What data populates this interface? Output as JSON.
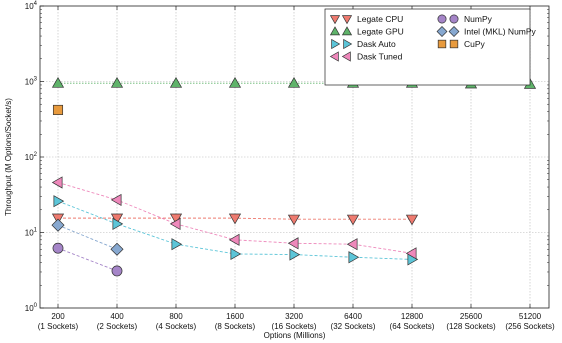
{
  "chart_data": {
    "type": "line",
    "xlabel": "Options (Millions)",
    "ylabel": "Throughput (M Options/Socket/s)",
    "yscale": "log",
    "ylim": [
      1,
      10000
    ],
    "y_ticks": [
      {
        "value": 1,
        "base": "10",
        "exp": "0"
      },
      {
        "value": 10,
        "base": "10",
        "exp": "1"
      },
      {
        "value": 100,
        "base": "10",
        "exp": "2"
      },
      {
        "value": 1000,
        "base": "10",
        "exp": "3"
      },
      {
        "value": 10000,
        "base": "10",
        "exp": "4"
      }
    ],
    "x_ticks": [
      {
        "value": "200",
        "sub": "(1 Sockets)"
      },
      {
        "value": "400",
        "sub": "(2 Sockets)"
      },
      {
        "value": "800",
        "sub": "(4 Sockets)"
      },
      {
        "value": "1600",
        "sub": "(8 Sockets)"
      },
      {
        "value": "3200",
        "sub": "(16 Sockets)"
      },
      {
        "value": "6400",
        "sub": "(32 Sockets)"
      },
      {
        "value": "12800",
        "sub": "(64 Sockets)"
      },
      {
        "value": "25600",
        "sub": "(128 Sockets)"
      },
      {
        "value": "51200",
        "sub": "(256 Sockets)"
      }
    ],
    "grid": true,
    "legend_position": "top-right",
    "series": [
      {
        "name": "Legate CPU",
        "marker": "triangle-down",
        "color": "#ee7a6f",
        "line_style": "dashed",
        "x": [
          200,
          400,
          800,
          1600,
          3200,
          6400,
          12800
        ],
        "values": [
          15.5,
          15.5,
          15.5,
          15.5,
          15,
          15,
          15
        ]
      },
      {
        "name": "Legate GPU",
        "marker": "triangle-up",
        "color": "#5fb36a",
        "line_style": "dotted",
        "x": [
          200,
          400,
          800,
          1600,
          3200,
          6400,
          12800,
          25600,
          51200
        ],
        "values": [
          950,
          950,
          950,
          950,
          950,
          950,
          950,
          930,
          920
        ]
      },
      {
        "name": "Dask Auto",
        "marker": "triangle-right",
        "color": "#5cc5d8",
        "line_style": "dashed",
        "x": [
          200,
          400,
          800,
          1600,
          3200,
          6400,
          12800
        ],
        "values": [
          26,
          13,
          7,
          5.2,
          5.1,
          4.7,
          4.4
        ]
      },
      {
        "name": "Dask Tuned",
        "marker": "triangle-left",
        "color": "#ee88bb",
        "line_style": "dashed",
        "x": [
          200,
          400,
          800,
          1600,
          3200,
          6400,
          12800
        ],
        "values": [
          46,
          27,
          13,
          8,
          7.2,
          7,
          5.3
        ]
      },
      {
        "name": "NumPy",
        "marker": "circle",
        "color": "#a585c8",
        "line_style": "dashed",
        "x": [
          200,
          400
        ],
        "values": [
          6.2,
          3.1
        ]
      },
      {
        "name": "Intel (MKL) NumPy",
        "marker": "diamond",
        "color": "#87a8d0",
        "line_style": "dashed",
        "x": [
          200,
          400
        ],
        "values": [
          12.5,
          6
        ]
      },
      {
        "name": "CuPy",
        "marker": "square",
        "color": "#e89a3d",
        "line_style": "none",
        "x": [
          200
        ],
        "values": [
          420
        ]
      }
    ]
  }
}
